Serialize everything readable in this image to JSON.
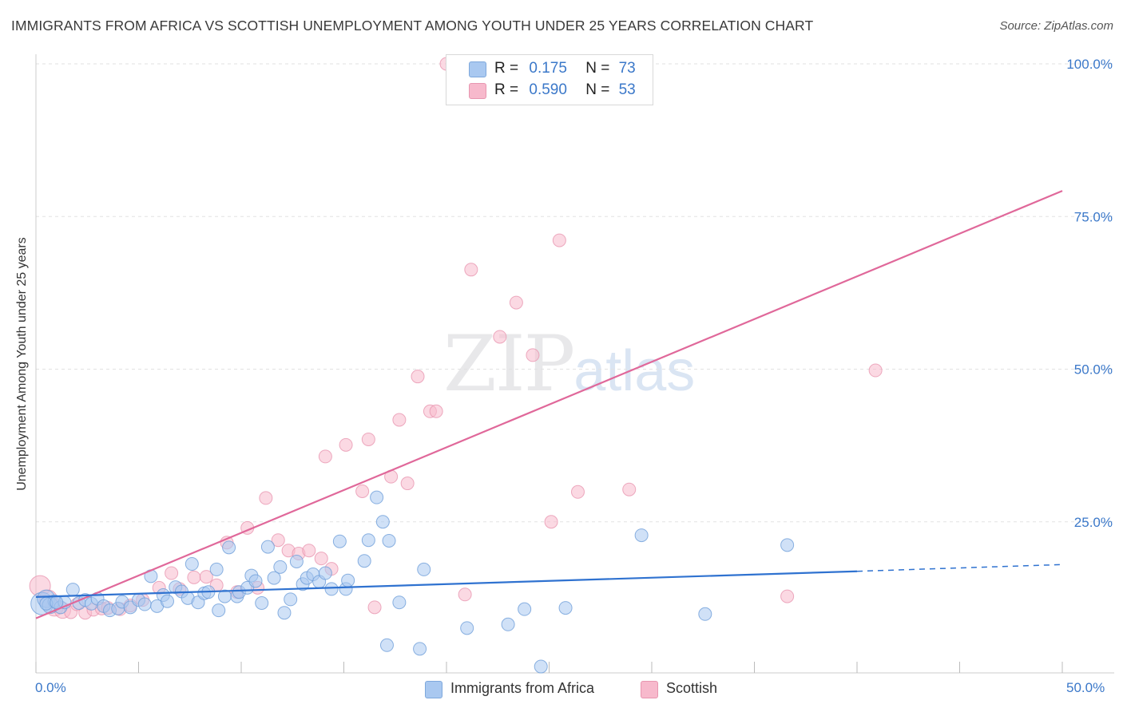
{
  "header": {
    "title": "IMMIGRANTS FROM AFRICA VS SCOTTISH UNEMPLOYMENT AMONG YOUTH UNDER 25 YEARS CORRELATION CHART",
    "source": "Source: ZipAtlas.com"
  },
  "watermark": {
    "main": "ZIP",
    "sub": "atlas"
  },
  "legend_top": {
    "rows": [
      {
        "r_label": "R =",
        "r_value": "0.175",
        "n_label": "N =",
        "n_value": "73",
        "color": "#a9c8f0"
      },
      {
        "r_label": "R =",
        "r_value": "0.590",
        "n_label": "N =",
        "n_value": "53",
        "color": "#f7b9cc"
      }
    ]
  },
  "legend_bottom": {
    "items": [
      {
        "label": "Immigrants from Africa",
        "color": "#a9c8f0"
      },
      {
        "label": "Scottish",
        "color": "#f7b9cc"
      }
    ]
  },
  "colors": {
    "blue_line": "#2f72d0",
    "pink_line": "#e0689a",
    "blue_fill": "#a9c8f0",
    "pink_fill": "#f7b9cc",
    "accent_text": "#3b78c9"
  },
  "chart_data": {
    "type": "scatter",
    "title": "IMMIGRANTS FROM AFRICA VS SCOTTISH UNEMPLOYMENT AMONG YOUTH UNDER 25 YEARS CORRELATION CHART",
    "xlabel": "",
    "ylabel": "Unemployment Among Youth under 25 years",
    "xlim": [
      0,
      50
    ],
    "ylim": [
      0,
      102
    ],
    "x_tick_labels": [
      "0.0%",
      "50.0%"
    ],
    "y_tick_labels": [
      "25.0%",
      "50.0%",
      "75.0%",
      "100.0%"
    ],
    "y_ticks": [
      25,
      50,
      75,
      100
    ],
    "grid": true,
    "legend_placement": "top-center",
    "series": [
      {
        "name": "Immigrants from Africa",
        "color": "#a9c8f0",
        "points": [
          [
            0.3,
            11.6
          ],
          [
            0.5,
            12.4
          ],
          [
            0.7,
            11.3
          ],
          [
            0.9,
            12.0
          ],
          [
            1.2,
            11.0
          ],
          [
            1.4,
            11.8
          ],
          [
            1.8,
            13.9
          ],
          [
            2.1,
            11.7
          ],
          [
            2.4,
            12.2
          ],
          [
            2.7,
            11.6
          ],
          [
            3.0,
            12.4
          ],
          [
            3.3,
            11.2
          ],
          [
            3.6,
            10.5
          ],
          [
            4.0,
            10.8
          ],
          [
            4.2,
            11.9
          ],
          [
            4.6,
            11.0
          ],
          [
            5.0,
            12.2
          ],
          [
            5.3,
            11.5
          ],
          [
            5.6,
            16.1
          ],
          [
            5.9,
            11.2
          ],
          [
            6.2,
            13.0
          ],
          [
            6.4,
            12.0
          ],
          [
            6.8,
            14.3
          ],
          [
            7.1,
            13.6
          ],
          [
            7.4,
            12.5
          ],
          [
            7.6,
            18.1
          ],
          [
            7.9,
            11.8
          ],
          [
            8.2,
            13.3
          ],
          [
            8.4,
            13.5
          ],
          [
            8.8,
            17.2
          ],
          [
            8.9,
            10.5
          ],
          [
            9.2,
            12.8
          ],
          [
            9.4,
            20.8
          ],
          [
            9.8,
            12.8
          ],
          [
            9.9,
            13.5
          ],
          [
            10.3,
            14.2
          ],
          [
            10.5,
            16.2
          ],
          [
            10.7,
            15.3
          ],
          [
            11.0,
            11.7
          ],
          [
            11.3,
            20.9
          ],
          [
            11.6,
            15.8
          ],
          [
            11.9,
            17.6
          ],
          [
            12.1,
            10.1
          ],
          [
            12.4,
            12.3
          ],
          [
            12.7,
            18.5
          ],
          [
            13.0,
            14.8
          ],
          [
            13.2,
            15.8
          ],
          [
            13.5,
            16.4
          ],
          [
            13.8,
            15.2
          ],
          [
            14.1,
            16.6
          ],
          [
            14.4,
            14.0
          ],
          [
            14.8,
            21.8
          ],
          [
            15.1,
            14.0
          ],
          [
            15.2,
            15.4
          ],
          [
            16.0,
            18.6
          ],
          [
            16.2,
            22.0
          ],
          [
            16.6,
            29.0
          ],
          [
            16.9,
            25.0
          ],
          [
            17.2,
            21.9
          ],
          [
            17.7,
            11.8
          ],
          [
            17.1,
            4.8
          ],
          [
            18.7,
            4.2
          ],
          [
            18.9,
            17.2
          ],
          [
            21.0,
            7.6
          ],
          [
            23.0,
            8.2
          ],
          [
            23.8,
            10.7
          ],
          [
            24.6,
            1.3
          ],
          [
            25.8,
            10.9
          ],
          [
            29.5,
            22.8
          ],
          [
            32.6,
            9.9
          ],
          [
            36.6,
            21.2
          ],
          [
            0.5,
            11.6
          ],
          [
            1.0,
            11.8
          ]
        ],
        "trend": {
          "x0": 0,
          "y0": 12.7,
          "x1": 40,
          "y1": 16.9,
          "dashed_to": {
            "x": 50,
            "y": 18.0
          }
        }
      },
      {
        "name": "Scottish",
        "color": "#f7b9cc",
        "points": [
          [
            0.2,
            14.5
          ],
          [
            0.6,
            12.4
          ],
          [
            0.9,
            11.0
          ],
          [
            1.3,
            10.5
          ],
          [
            1.7,
            10.2
          ],
          [
            2.0,
            11.5
          ],
          [
            2.4,
            10.1
          ],
          [
            2.8,
            10.6
          ],
          [
            3.2,
            10.8
          ],
          [
            3.5,
            10.9
          ],
          [
            4.1,
            10.7
          ],
          [
            4.6,
            11.3
          ],
          [
            5.2,
            12.2
          ],
          [
            6.0,
            14.2
          ],
          [
            6.6,
            16.6
          ],
          [
            7.0,
            14.0
          ],
          [
            7.7,
            15.9
          ],
          [
            8.3,
            16.0
          ],
          [
            8.8,
            14.6
          ],
          [
            9.3,
            21.6
          ],
          [
            9.8,
            13.5
          ],
          [
            10.3,
            24.0
          ],
          [
            10.8,
            14.2
          ],
          [
            11.2,
            28.9
          ],
          [
            11.8,
            22.0
          ],
          [
            12.3,
            20.3
          ],
          [
            12.8,
            19.8
          ],
          [
            13.3,
            20.3
          ],
          [
            13.9,
            19.0
          ],
          [
            14.4,
            17.3
          ],
          [
            14.1,
            35.7
          ],
          [
            15.1,
            37.6
          ],
          [
            15.9,
            30.0
          ],
          [
            16.2,
            38.5
          ],
          [
            16.5,
            11.0
          ],
          [
            17.3,
            32.4
          ],
          [
            17.7,
            41.7
          ],
          [
            18.1,
            31.3
          ],
          [
            18.6,
            48.8
          ],
          [
            19.2,
            43.1
          ],
          [
            19.5,
            43.1
          ],
          [
            20.0,
            100.0
          ],
          [
            20.9,
            13.1
          ],
          [
            21.2,
            66.3
          ],
          [
            22.6,
            55.3
          ],
          [
            23.4,
            60.9
          ],
          [
            24.2,
            52.3
          ],
          [
            25.1,
            25.0
          ],
          [
            25.5,
            71.1
          ],
          [
            26.4,
            29.9
          ],
          [
            28.9,
            30.3
          ],
          [
            36.6,
            12.8
          ],
          [
            40.9,
            49.8
          ]
        ],
        "trend": {
          "x0": 0,
          "y0": 9.2,
          "x1": 50,
          "y1": 79.2
        }
      }
    ]
  }
}
